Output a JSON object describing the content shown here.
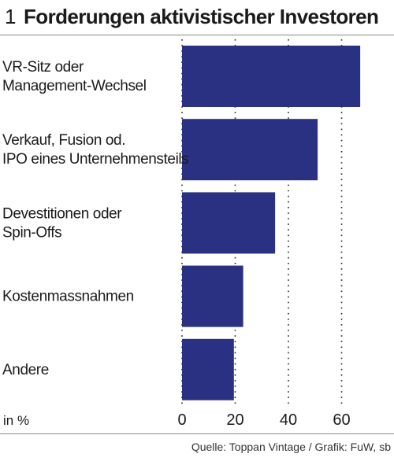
{
  "figure": {
    "number": "1",
    "title": "Forderungen aktivistischer Investoren",
    "source": "Quelle: Toppan Vintage / Grafik: FuW, sb"
  },
  "chart_data": {
    "type": "bar",
    "orientation": "horizontal",
    "categories": [
      [
        "VR-Sitz oder",
        "Management-Wechsel"
      ],
      [
        "Verkauf, Fusion od.",
        "IPO eines Unternehmensteils"
      ],
      [
        "Devestitionen oder",
        "Spin-Offs"
      ],
      [
        "Kostenmassnahmen"
      ],
      [
        "Andere"
      ]
    ],
    "values": [
      67,
      51,
      35,
      23,
      19.5
    ],
    "xlim": [
      0,
      70
    ],
    "xticks": [
      0,
      20,
      40,
      60
    ],
    "xtick_labels": [
      "0",
      "20",
      "40",
      "60"
    ],
    "unit_label": "in %",
    "grid": "dotted vertical",
    "bar_color": "#2b3182"
  }
}
